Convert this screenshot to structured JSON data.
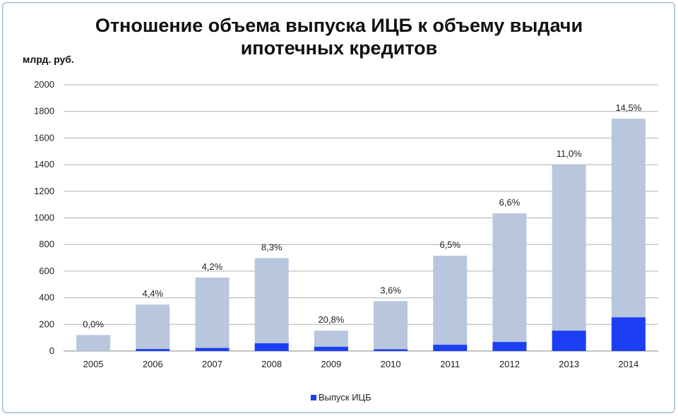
{
  "chart_data": {
    "type": "bar",
    "title_line1": "Отношение объема выпуска ИЦБ к объему выдачи",
    "title_line2": "ипотечных кредитов",
    "ylabel": "млрд. руб.",
    "ylim": [
      0,
      2000
    ],
    "yticks": [
      "0",
      "200",
      "400",
      "600",
      "800",
      "1000",
      "1200",
      "1400",
      "1600",
      "1800",
      "2000"
    ],
    "ytick_values": [
      0,
      200,
      400,
      600,
      800,
      1000,
      1200,
      1400,
      1600,
      1800,
      2000
    ],
    "categories": [
      "2005",
      "2006",
      "2007",
      "2008",
      "2009",
      "2010",
      "2011",
      "2012",
      "2013",
      "2014"
    ],
    "series": [
      {
        "name": "Выпуск ИЦБ",
        "color": "#1c3ff5",
        "values": [
          0,
          15,
          23,
          58,
          32,
          13,
          47,
          68,
          153,
          253
        ]
      },
      {
        "color": "#b8c7dd",
        "values": [
          120,
          349,
          552,
          698,
          153,
          375,
          716,
          1034,
          1400,
          1745
        ]
      }
    ],
    "data_labels": [
      "0,0%",
      "4,4%",
      "4,2%",
      "8,3%",
      "20,8%",
      "3,6%",
      "6,5%",
      "6,6%",
      "11,0%",
      "14,5%"
    ],
    "legend": {
      "label": "Выпуск ИЦБ",
      "position": "bottom"
    },
    "grid": true
  }
}
